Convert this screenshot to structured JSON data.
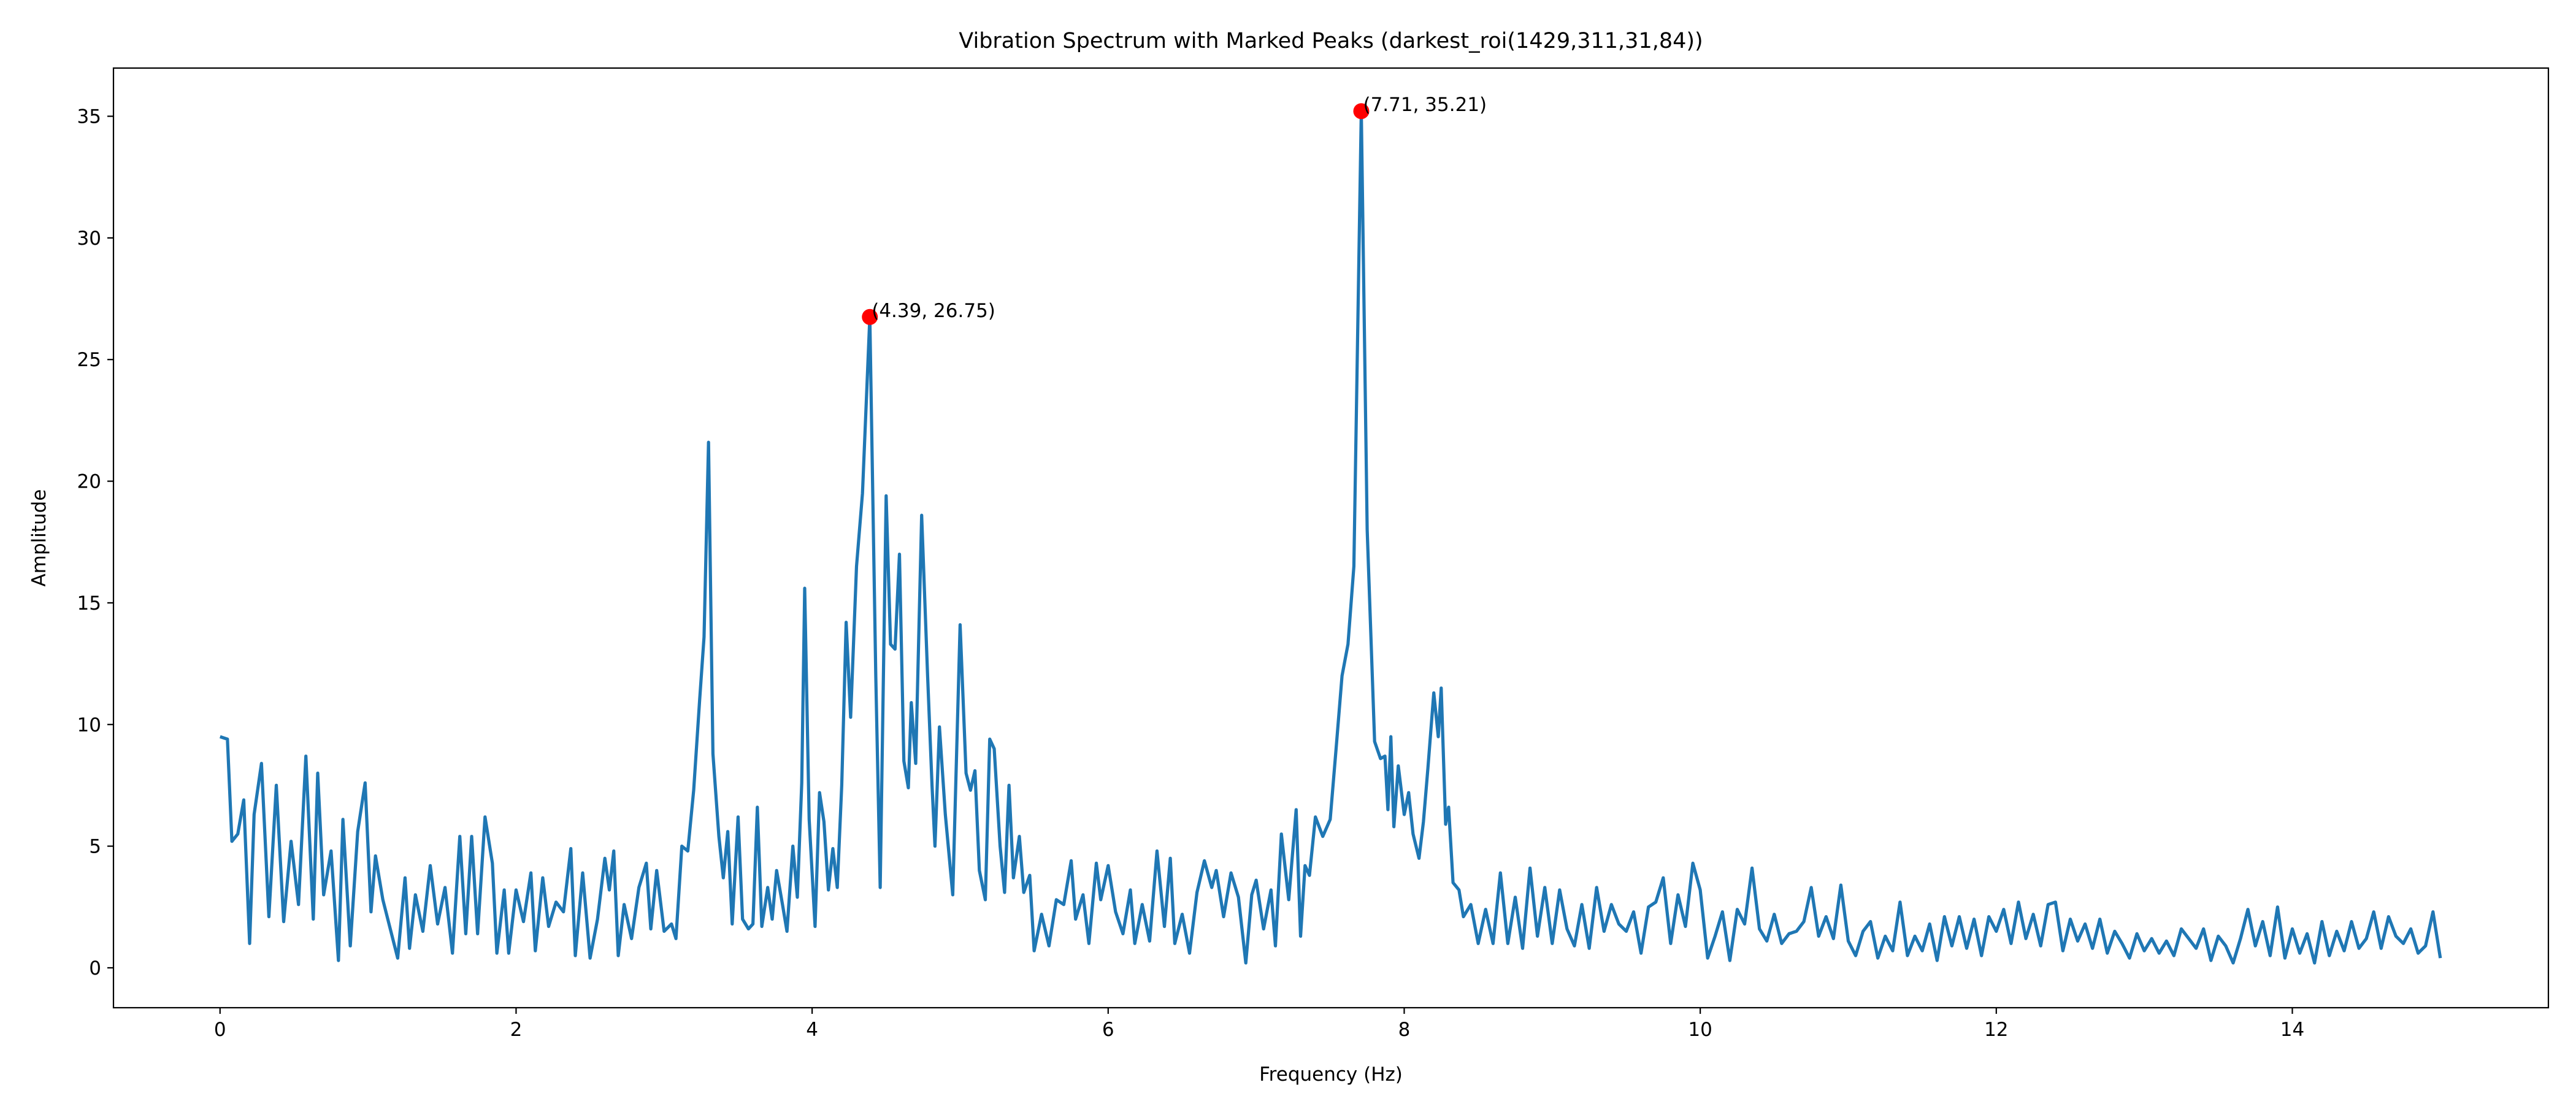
{
  "chart_data": {
    "type": "line",
    "title": "Vibration Spectrum with Marked Peaks (darkest_roi(1429,311,31,84))",
    "xlabel": "Frequency (Hz)",
    "ylabel": "Amplitude",
    "xlim": [
      -0.72,
      15.73
    ],
    "ylim": [
      -1.64,
      36.98
    ],
    "xticks": [
      0,
      2,
      4,
      6,
      8,
      10,
      12,
      14
    ],
    "yticks": [
      0,
      5,
      10,
      15,
      20,
      25,
      30,
      35
    ],
    "x": [
      0.0,
      0.05,
      0.08,
      0.12,
      0.16,
      0.2,
      0.23,
      0.28,
      0.33,
      0.38,
      0.43,
      0.48,
      0.53,
      0.58,
      0.63,
      0.66,
      0.7,
      0.75,
      0.8,
      0.83,
      0.88,
      0.93,
      0.98,
      1.02,
      1.05,
      1.1,
      1.15,
      1.2,
      1.25,
      1.28,
      1.32,
      1.37,
      1.42,
      1.47,
      1.52,
      1.57,
      1.62,
      1.66,
      1.7,
      1.74,
      1.79,
      1.84,
      1.87,
      1.92,
      1.95,
      2.0,
      2.05,
      2.1,
      2.13,
      2.18,
      2.22,
      2.27,
      2.32,
      2.37,
      2.4,
      2.45,
      2.5,
      2.55,
      2.6,
      2.63,
      2.66,
      2.69,
      2.73,
      2.78,
      2.83,
      2.88,
      2.91,
      2.95,
      3.0,
      3.05,
      3.08,
      3.12,
      3.16,
      3.2,
      3.24,
      3.27,
      3.3,
      3.33,
      3.37,
      3.4,
      3.43,
      3.46,
      3.5,
      3.53,
      3.57,
      3.6,
      3.63,
      3.66,
      3.7,
      3.73,
      3.76,
      3.8,
      3.83,
      3.87,
      3.9,
      3.93,
      3.95,
      3.98,
      4.02,
      4.05,
      4.08,
      4.11,
      4.14,
      4.17,
      4.2,
      4.23,
      4.26,
      4.3,
      4.34,
      4.39,
      4.43,
      4.46,
      4.5,
      4.53,
      4.56,
      4.59,
      4.62,
      4.65,
      4.67,
      4.7,
      4.74,
      4.78,
      4.81,
      4.83,
      4.86,
      4.9,
      4.95,
      5.0,
      5.04,
      5.07,
      5.1,
      5.13,
      5.17,
      5.2,
      5.23,
      5.27,
      5.3,
      5.33,
      5.36,
      5.4,
      5.43,
      5.47,
      5.5,
      5.55,
      5.6,
      5.65,
      5.7,
      5.75,
      5.78,
      5.83,
      5.87,
      5.92,
      5.95,
      6.0,
      6.05,
      6.1,
      6.15,
      6.18,
      6.23,
      6.28,
      6.33,
      6.38,
      6.42,
      6.45,
      6.5,
      6.55,
      6.6,
      6.65,
      6.7,
      6.73,
      6.78,
      6.83,
      6.88,
      6.93,
      6.97,
      7.0,
      7.05,
      7.1,
      7.13,
      7.17,
      7.22,
      7.27,
      7.3,
      7.33,
      7.36,
      7.4,
      7.45,
      7.5,
      7.54,
      7.58,
      7.62,
      7.66,
      7.71,
      7.75,
      7.8,
      7.84,
      7.87,
      7.89,
      7.91,
      7.93,
      7.96,
      8.0,
      8.03,
      8.06,
      8.1,
      8.13,
      8.16,
      8.2,
      8.23,
      8.25,
      8.28,
      8.3,
      8.33,
      8.37,
      8.4,
      8.45,
      8.5,
      8.55,
      8.6,
      8.65,
      8.7,
      8.75,
      8.8,
      8.85,
      8.9,
      8.95,
      9.0,
      9.05,
      9.1,
      9.15,
      9.2,
      9.25,
      9.3,
      9.35,
      9.4,
      9.45,
      9.5,
      9.55,
      9.6,
      9.65,
      9.7,
      9.75,
      9.8,
      9.85,
      9.9,
      9.95,
      10.0,
      10.05,
      10.1,
      10.15,
      10.2,
      10.25,
      10.3,
      10.35,
      10.4,
      10.45,
      10.5,
      10.55,
      10.6,
      10.65,
      10.7,
      10.75,
      10.8,
      10.85,
      10.9,
      10.95,
      11.0,
      11.05,
      11.1,
      11.15,
      11.2,
      11.25,
      11.3,
      11.35,
      11.4,
      11.45,
      11.5,
      11.55,
      11.6,
      11.65,
      11.7,
      11.75,
      11.8,
      11.85,
      11.9,
      11.95,
      12.0,
      12.05,
      12.1,
      12.15,
      12.2,
      12.25,
      12.3,
      12.35,
      12.4,
      12.45,
      12.5,
      12.55,
      12.6,
      12.65,
      12.7,
      12.75,
      12.8,
      12.85,
      12.9,
      12.95,
      13.0,
      13.05,
      13.1,
      13.15,
      13.2,
      13.25,
      13.3,
      13.35,
      13.4,
      13.45,
      13.5,
      13.55,
      13.6,
      13.65,
      13.7,
      13.75,
      13.8,
      13.85,
      13.9,
      13.95,
      14.0,
      14.05,
      14.1,
      14.15,
      14.2,
      14.25,
      14.3,
      14.35,
      14.4,
      14.45,
      14.5,
      14.55,
      14.6,
      14.65,
      14.7,
      14.75,
      14.8,
      14.85,
      14.9,
      14.95,
      15.0
    ],
    "series": [
      {
        "color": "#1f77b4",
        "values": [
          9.5,
          9.4,
          5.2,
          5.5,
          6.9,
          1.0,
          6.3,
          8.4,
          2.1,
          7.5,
          1.9,
          5.2,
          2.6,
          8.7,
          2.0,
          8.0,
          3.0,
          4.8,
          0.3,
          6.1,
          0.9,
          5.6,
          7.6,
          2.3,
          4.6,
          2.8,
          1.6,
          0.4,
          3.7,
          0.8,
          3.0,
          1.5,
          4.2,
          1.8,
          3.3,
          0.6,
          5.4,
          1.4,
          5.4,
          1.4,
          6.2,
          4.3,
          0.6,
          3.2,
          0.6,
          3.2,
          1.9,
          3.9,
          0.7,
          3.7,
          1.7,
          2.7,
          2.3,
          4.9,
          0.5,
          3.9,
          0.4,
          2.0,
          4.5,
          3.2,
          4.8,
          0.5,
          2.6,
          1.2,
          3.3,
          4.3,
          1.6,
          4.0,
          1.5,
          1.8,
          1.2,
          5.0,
          4.8,
          7.3,
          11.0,
          13.6,
          21.6,
          8.8,
          5.4,
          3.7,
          5.6,
          1.8,
          6.2,
          2.0,
          1.6,
          1.8,
          6.6,
          1.7,
          3.3,
          2.0,
          4.0,
          2.6,
          1.5,
          5.0,
          2.9,
          7.6,
          15.6,
          6.1,
          1.7,
          7.2,
          6.0,
          3.2,
          4.9,
          3.3,
          7.5,
          14.2,
          10.3,
          16.5,
          19.5,
          26.75,
          12.0,
          3.3,
          19.4,
          13.3,
          13.1,
          17.0,
          8.5,
          7.4,
          10.9,
          8.4,
          18.6,
          12.0,
          7.5,
          5.0,
          9.9,
          6.3,
          3.0,
          14.1,
          8.0,
          7.3,
          8.1,
          4.0,
          2.8,
          9.4,
          9.0,
          5.0,
          3.1,
          7.5,
          3.7,
          5.4,
          3.1,
          3.8,
          0.7,
          2.2,
          0.9,
          2.8,
          2.6,
          4.4,
          2.0,
          3.0,
          1.0,
          4.3,
          2.8,
          4.2,
          2.3,
          1.4,
          3.2,
          1.0,
          2.6,
          1.1,
          4.8,
          1.7,
          4.5,
          1.0,
          2.2,
          0.6,
          3.1,
          4.4,
          3.3,
          4.0,
          2.1,
          3.9,
          2.9,
          0.2,
          3.0,
          3.6,
          1.6,
          3.2,
          0.9,
          5.5,
          2.8,
          6.5,
          1.3,
          4.2,
          3.8,
          6.2,
          5.4,
          6.1,
          9.0,
          12.0,
          13.3,
          16.5,
          35.21,
          18.0,
          9.3,
          8.6,
          8.7,
          6.5,
          9.5,
          5.8,
          8.3,
          6.3,
          7.2,
          5.5,
          4.5,
          6.0,
          8.2,
          11.3,
          9.5,
          11.5,
          5.9,
          6.6,
          3.5,
          3.2,
          2.1,
          2.6,
          1.0,
          2.4,
          1.0,
          3.9,
          1.0,
          2.9,
          0.8,
          4.1,
          1.3,
          3.3,
          1.0,
          3.2,
          1.6,
          0.9,
          2.6,
          0.8,
          3.3,
          1.5,
          2.6,
          1.8,
          1.5,
          2.3,
          0.6,
          2.5,
          2.7,
          3.7,
          1.0,
          3.0,
          1.7,
          4.3,
          3.2,
          0.4,
          1.3,
          2.3,
          0.3,
          2.4,
          1.8,
          4.1,
          1.6,
          1.1,
          2.2,
          1.0,
          1.4,
          1.5,
          1.9,
          3.3,
          1.3,
          2.1,
          1.2,
          3.4,
          1.1,
          0.5,
          1.5,
          1.9,
          0.4,
          1.3,
          0.7,
          2.7,
          0.5,
          1.3,
          0.7,
          1.8,
          0.3,
          2.1,
          0.9,
          2.1,
          0.8,
          2.0,
          0.5,
          2.1,
          1.5,
          2.4,
          1.0,
          2.7,
          1.2,
          2.2,
          0.9,
          2.6,
          2.7,
          0.7,
          2.0,
          1.1,
          1.8,
          0.8,
          2.0,
          0.6,
          1.5,
          1.0,
          0.4,
          1.4,
          0.7,
          1.2,
          0.6,
          1.1,
          0.5,
          1.6,
          1.2,
          0.8,
          1.6,
          0.3,
          1.3,
          0.9,
          0.2,
          1.2,
          2.4,
          0.9,
          1.9,
          0.5,
          2.5,
          0.4,
          1.6,
          0.6,
          1.4,
          0.2,
          1.9,
          0.5,
          1.5,
          0.7,
          1.9,
          0.8,
          1.2,
          2.3,
          0.8,
          2.1,
          1.3,
          1.0,
          1.6,
          0.6,
          0.9,
          2.3,
          0.4
        ]
      }
    ],
    "peaks": {
      "type": "scatter",
      "color": "#ff0000",
      "x": [
        4.39,
        7.71
      ],
      "values": [
        26.75,
        35.21
      ],
      "value_labels": [
        "(4.39, 26.75)",
        "(7.71, 35.21)"
      ]
    }
  }
}
